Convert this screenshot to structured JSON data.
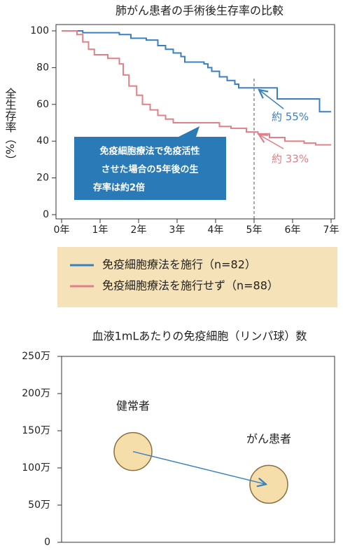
{
  "chart_data": [
    {
      "type": "step",
      "title": "肺がん患者の手術後生存率の比較",
      "y_label": "全生存率（%）",
      "xlim": [
        0,
        7
      ],
      "xticks": [
        {
          "value": 0,
          "label": "0年"
        },
        {
          "value": 1,
          "label": "1年"
        },
        {
          "value": 2,
          "label": "2年"
        },
        {
          "value": 3,
          "label": "3年"
        },
        {
          "value": 4,
          "label": "4年"
        },
        {
          "value": 5,
          "label": "5年"
        },
        {
          "value": 6,
          "label": "6年"
        },
        {
          "value": 7,
          "label": "7年"
        }
      ],
      "ylim": [
        0,
        100
      ],
      "yticks": [
        0,
        20,
        40,
        60,
        80,
        100
      ],
      "reference_line_x": 5,
      "series": [
        {
          "name": "免疫細胞療法を施行（n=82）",
          "color": "#3a80c0",
          "x": [
            0,
            0.55,
            1.5,
            1.8,
            2.2,
            2.5,
            2.7,
            2.9,
            3.1,
            3.2,
            3.7,
            3.8,
            3.9,
            4.1,
            4.3,
            4.5,
            4.6,
            5.6,
            6.7,
            7
          ],
          "values": [
            100,
            99,
            98,
            96,
            95,
            92,
            90,
            88,
            86,
            83,
            82,
            80,
            78,
            75,
            73,
            71,
            69,
            63,
            56,
            56
          ]
        },
        {
          "name": "免疫細胞療法を施行せず（n=88）",
          "color": "#e08088",
          "x": [
            0,
            0.4,
            0.55,
            0.7,
            0.85,
            1.2,
            1.5,
            1.6,
            1.75,
            1.95,
            2.1,
            2.3,
            2.5,
            2.7,
            2.9,
            3.9,
            4.1,
            4.4,
            4.8,
            5.1,
            5.4,
            5.8,
            6.3,
            6.6,
            7
          ],
          "values": [
            100,
            98,
            94,
            90,
            87,
            85,
            82,
            76,
            70,
            65,
            60,
            57,
            54,
            52,
            50,
            50,
            48,
            47,
            45,
            44,
            42,
            40,
            39,
            38,
            38
          ]
        }
      ],
      "annotations": [
        "約 55%",
        "約 33%"
      ],
      "callout": [
        "免疫細胞療法で免疫活性",
        "させた場合の5年後の生",
        "存率は約2倍"
      ]
    },
    {
      "type": "bubble",
      "title": "血液1mLあたりの免疫細胞（リンパ球）数",
      "categories": [
        "健常者",
        "がん患者"
      ],
      "values": [
        1220000,
        780000
      ],
      "color": "#f5deaa",
      "ylim": [
        0,
        2500000
      ],
      "yticks": [
        {
          "value": 0,
          "label": "0"
        },
        {
          "value": 500000,
          "label": "50万"
        },
        {
          "value": 1000000,
          "label": "100万"
        },
        {
          "value": 1500000,
          "label": "150万"
        },
        {
          "value": 2000000,
          "label": "200万"
        },
        {
          "value": 2500000,
          "label": "250万"
        }
      ]
    }
  ]
}
